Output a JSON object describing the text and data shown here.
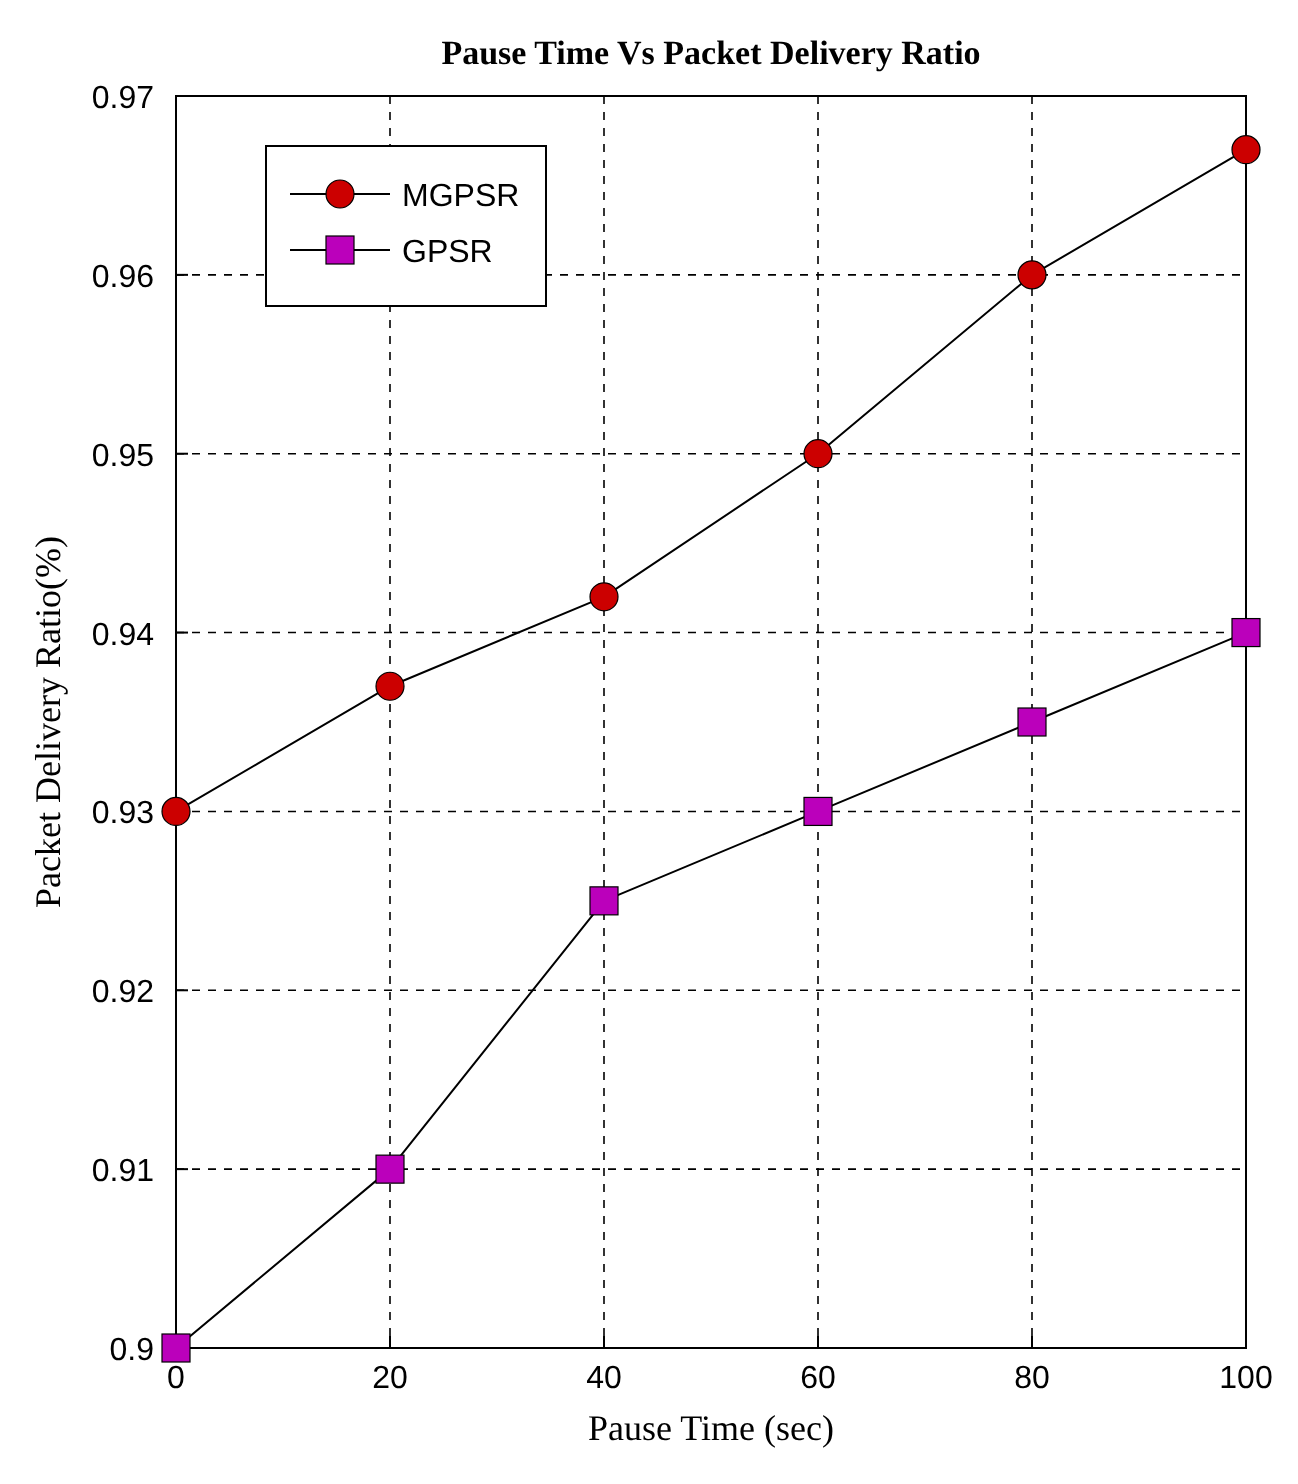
{
  "chart_data": {
    "type": "line",
    "title": "Pause Time Vs Packet Delivery Ratio",
    "xlabel": "Pause Time (sec)",
    "ylabel": "Packet Delivery Ratio(%)",
    "x": [
      0,
      20,
      40,
      60,
      80,
      100
    ],
    "series": [
      {
        "name": "MGPSR",
        "color": "#cc0000",
        "marker": "circle",
        "values": [
          0.93,
          0.937,
          0.942,
          0.95,
          0.96,
          0.967
        ]
      },
      {
        "name": "GPSR",
        "color": "#bb00bb",
        "marker": "square",
        "values": [
          0.9,
          0.91,
          0.925,
          0.93,
          0.935,
          0.94
        ]
      }
    ],
    "xlim": [
      0,
      100
    ],
    "xticks": [
      0,
      20,
      40,
      60,
      80,
      100
    ],
    "ylim": [
      0.9,
      0.97
    ],
    "yticks": [
      0.9,
      0.91,
      0.92,
      0.93,
      0.94,
      0.95,
      0.96,
      0.97
    ],
    "grid": true,
    "legend": "top left",
    "line_style": "solid"
  }
}
